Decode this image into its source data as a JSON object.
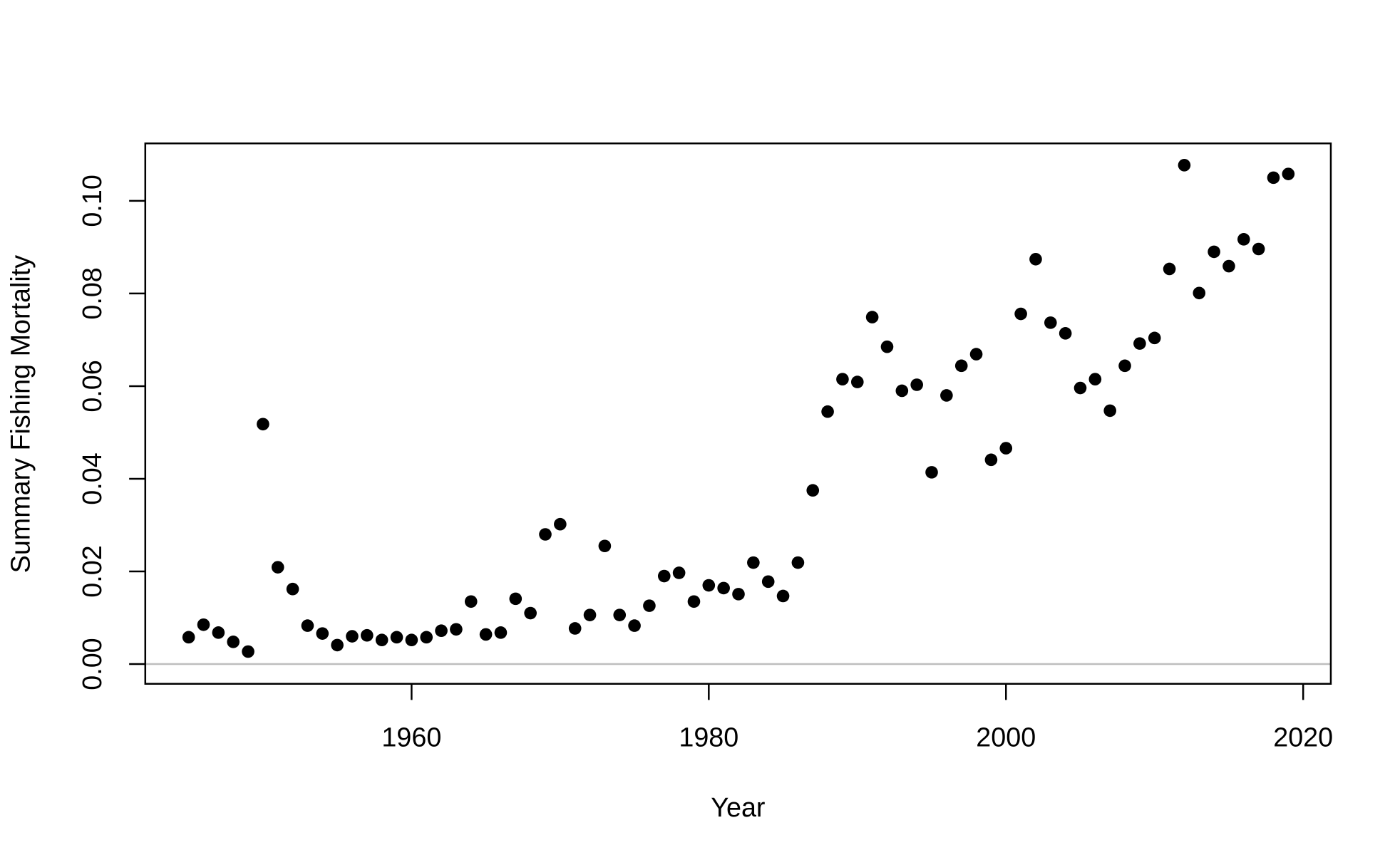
{
  "chart_data": {
    "type": "scatter",
    "x_label": "Year",
    "y_label": "Summary Fishing Mortality",
    "x": [
      1945,
      1946,
      1947,
      1948,
      1949,
      1950,
      1951,
      1952,
      1953,
      1954,
      1955,
      1956,
      1957,
      1958,
      1959,
      1960,
      1961,
      1962,
      1963,
      1964,
      1965,
      1966,
      1967,
      1968,
      1969,
      1970,
      1971,
      1972,
      1973,
      1974,
      1975,
      1976,
      1977,
      1978,
      1979,
      1980,
      1981,
      1982,
      1983,
      1984,
      1985,
      1986,
      1987,
      1988,
      1989,
      1990,
      1991,
      1992,
      1993,
      1994,
      1995,
      1996,
      1997,
      1998,
      1999,
      2000,
      2001,
      2002,
      2003,
      2004,
      2005,
      2006,
      2007,
      2008,
      2009,
      2010,
      2011,
      2012,
      2013,
      2014,
      2015,
      2016,
      2017,
      2018,
      2019
    ],
    "y": [
      0.0058,
      0.0085,
      0.0068,
      0.0048,
      0.0027,
      0.0518,
      0.0209,
      0.0162,
      0.0083,
      0.0066,
      0.0041,
      0.006,
      0.0062,
      0.0052,
      0.0058,
      0.0052,
      0.0058,
      0.0072,
      0.0075,
      0.0135,
      0.0064,
      0.0068,
      0.0141,
      0.011,
      0.028,
      0.0302,
      0.0077,
      0.0106,
      0.0255,
      0.0106,
      0.0083,
      0.0126,
      0.019,
      0.0197,
      0.0135,
      0.017,
      0.0164,
      0.0151,
      0.0219,
      0.0178,
      0.0147,
      0.0219,
      0.0375,
      0.0545,
      0.0615,
      0.0609,
      0.0749,
      0.0685,
      0.059,
      0.0603,
      0.0414,
      0.058,
      0.0644,
      0.0669,
      0.0441,
      0.0466,
      0.0756,
      0.0874,
      0.0737,
      0.0714,
      0.0596,
      0.0615,
      0.0547,
      0.0644,
      0.0692,
      0.0704,
      0.0853,
      0.1077,
      0.0801,
      0.089,
      0.0859,
      0.0917,
      0.0896,
      0.105,
      0.1058
    ],
    "color": "#000000",
    "xlim": [
      1942.08,
      2021.86
    ],
    "ylim": [
      -0.00426,
      0.1124
    ],
    "xticks": [
      1960,
      1980,
      2000,
      2020
    ],
    "yticks": [
      {
        "value": 0,
        "label": "0.00"
      },
      {
        "value": 0.02,
        "label": "0.02"
      },
      {
        "value": 0.04,
        "label": "0.04"
      },
      {
        "value": 0.06,
        "label": "0.06"
      },
      {
        "value": 0.08,
        "label": "0.08"
      },
      {
        "value": 0.1,
        "label": "0.10"
      }
    ],
    "reference_line": 0,
    "reference_color": "#bebebe"
  }
}
